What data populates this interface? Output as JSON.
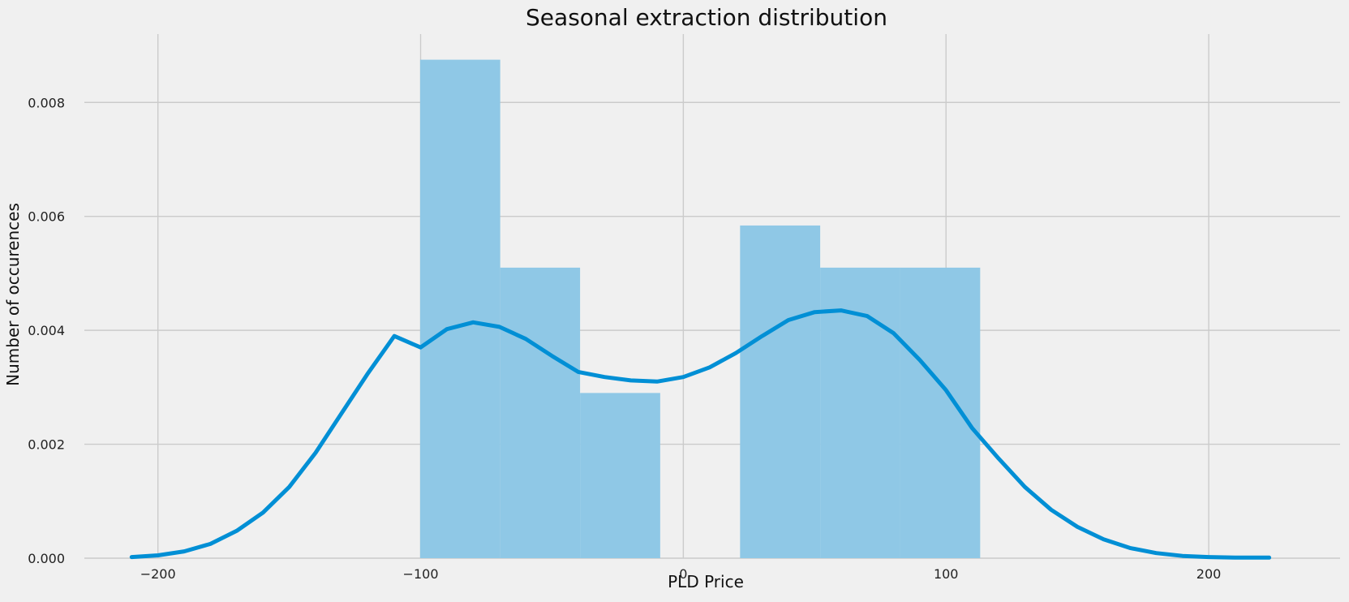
{
  "chart_data": {
    "type": "bar",
    "title": "Seasonal extraction distribution",
    "xlabel": "PLD Price",
    "ylabel": "Number of occurences",
    "xlim": [
      -228,
      250
    ],
    "ylim": [
      0,
      0.0092
    ],
    "x_ticks": [
      -200,
      -100,
      0,
      100,
      200
    ],
    "x_tick_labels": [
      "−200",
      "−100",
      "0",
      "100",
      "200"
    ],
    "y_ticks": [
      0,
      0.002,
      0.004,
      0.006,
      0.008
    ],
    "y_tick_labels": [
      "0.000",
      "0.002",
      "0.004",
      "0.006",
      "0.008"
    ],
    "grid": true,
    "histogram": {
      "bin_edges": [
        -100.2,
        -69.7,
        -39.3,
        -8.8,
        21.6,
        52.1,
        82.5,
        113
      ],
      "values": [
        0.00875,
        0.0051,
        0.0029,
        0,
        0.00584,
        0.0051,
        0.0051
      ]
    },
    "kde": {
      "x": [
        -210,
        -200,
        -190,
        -180,
        -170,
        -160,
        -150,
        -140,
        -130,
        -120,
        -110,
        -100,
        -90,
        -80,
        -70,
        -60,
        -50,
        -40,
        -30,
        -20,
        -10,
        0,
        10,
        20,
        30,
        40,
        50,
        60,
        70,
        80,
        90,
        100,
        110,
        120,
        130,
        140,
        150,
        160,
        170,
        180,
        190,
        200,
        210,
        223
      ],
      "y": [
        2e-05,
        5e-05,
        0.00012,
        0.00025,
        0.00048,
        0.0008,
        0.00125,
        0.00185,
        0.00255,
        0.00325,
        0.0039,
        0.0037,
        0.00402,
        0.00414,
        0.00406,
        0.00385,
        0.00355,
        0.00327,
        0.00318,
        0.00312,
        0.0031,
        0.00318,
        0.00335,
        0.0036,
        0.0039,
        0.00418,
        0.00432,
        0.00435,
        0.00425,
        0.00395,
        0.00348,
        0.00295,
        0.00228,
        0.00175,
        0.00125,
        0.00085,
        0.00055,
        0.00033,
        0.00018,
        9e-05,
        4e-05,
        2e-05,
        1e-05,
        1e-05
      ]
    },
    "colors": {
      "background": "#f0f0f0",
      "bars": "#8fc8e6",
      "kde": "#008fd5",
      "grid": "#cbcbcb"
    }
  }
}
